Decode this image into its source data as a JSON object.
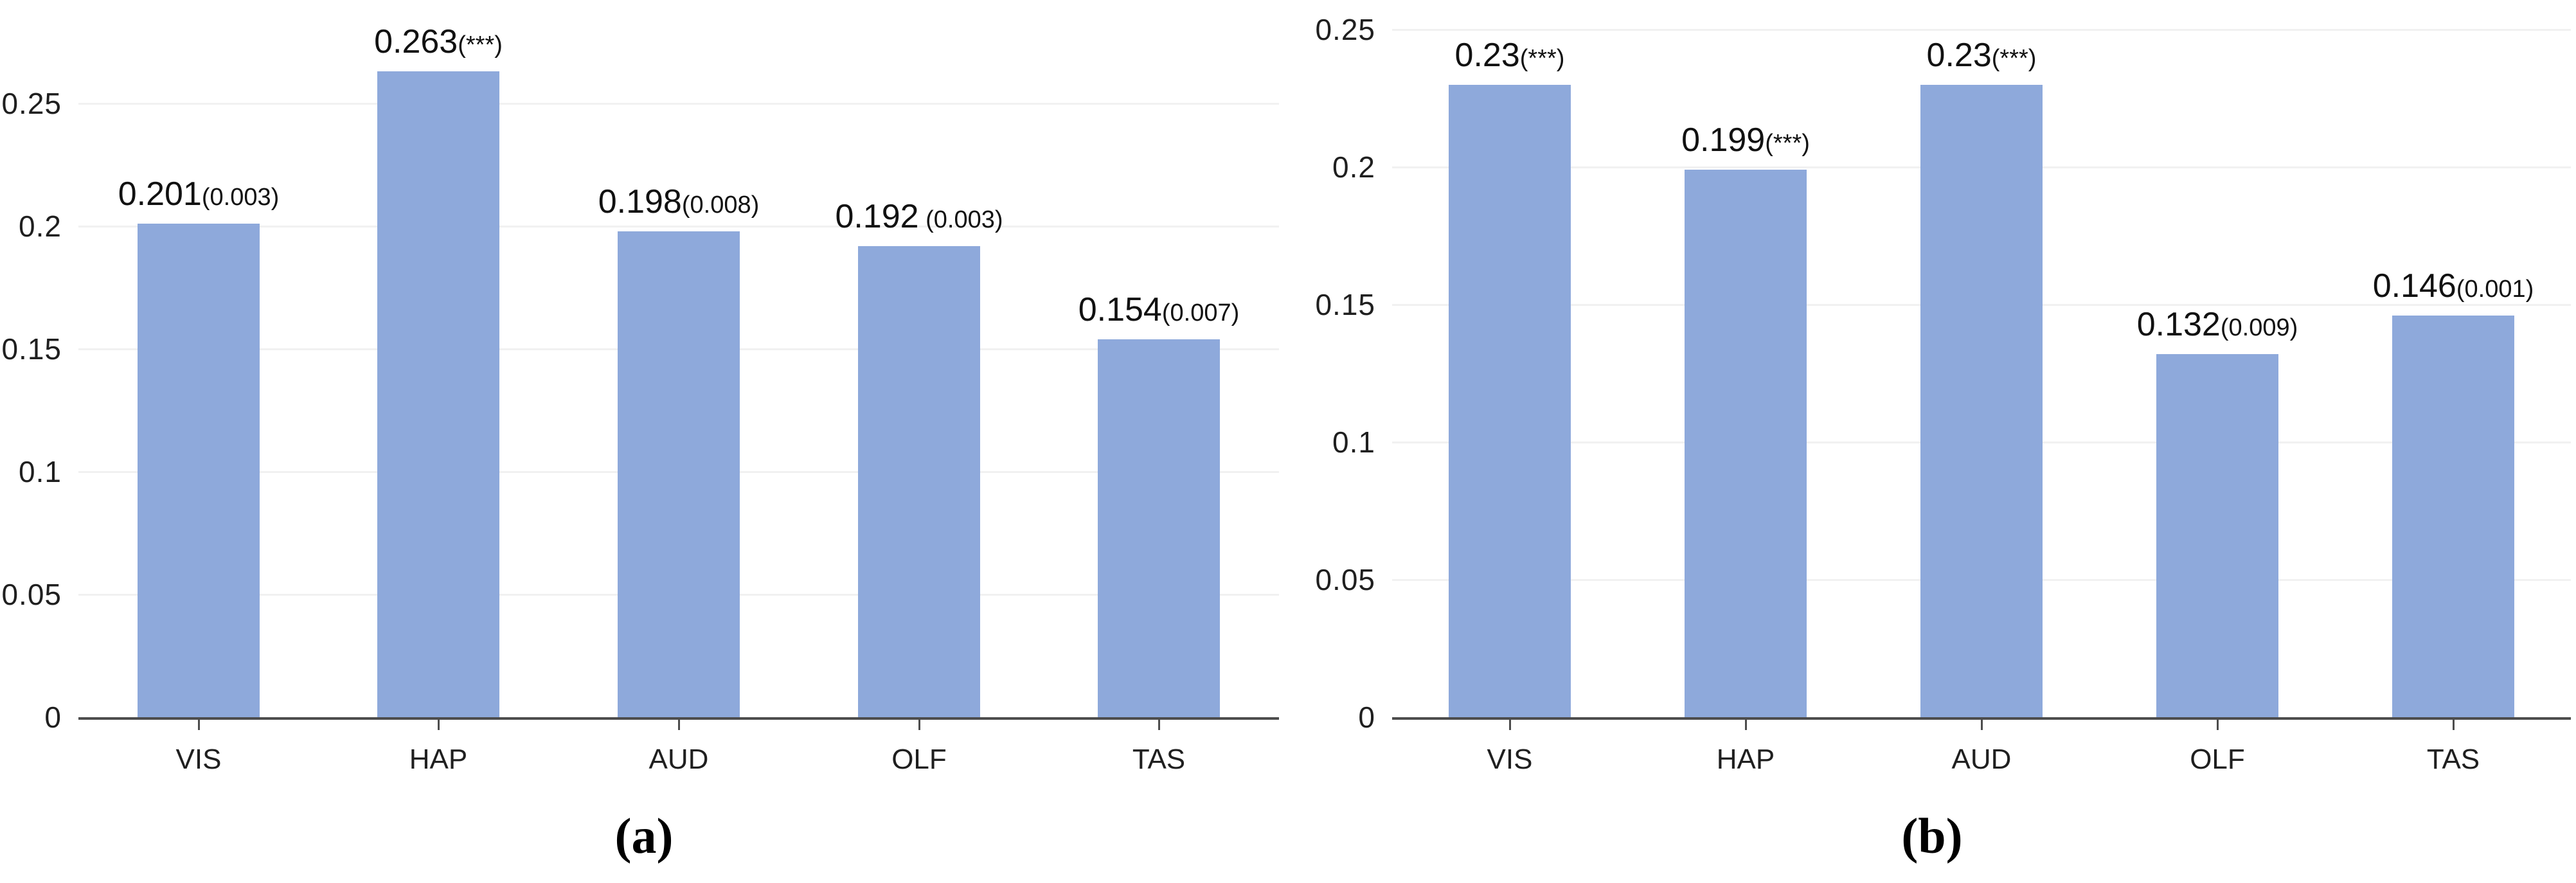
{
  "figure": {
    "background": "#ffffff",
    "caption_a": "(a)",
    "caption_b": "(b)"
  },
  "chart_data": [
    {
      "panel": "a",
      "type": "bar",
      "caption": "(a)",
      "categories": [
        "VIS",
        "HAP",
        "AUD",
        "OLF",
        "TAS"
      ],
      "values": [
        0.201,
        0.263,
        0.198,
        0.192,
        0.154
      ],
      "bar_labels": [
        {
          "value": "0.201",
          "stat": "(0.003)"
        },
        {
          "value": "0.263",
          "stat": "(***)"
        },
        {
          "value": "0.198",
          "stat": "(0.008)"
        },
        {
          "value": "0.192",
          "stat": " (0.003)"
        },
        {
          "value": "0.154",
          "stat": "(0.007)"
        }
      ],
      "ylabel": "",
      "xlabel": "",
      "title": "",
      "ylim": [
        0,
        0.27
      ],
      "yticks": [
        0,
        0.05,
        0.1,
        0.15,
        0.2,
        0.25
      ],
      "ytick_labels": [
        "0",
        "0.05",
        "0.1",
        "0.15",
        "0.2",
        "0.25"
      ],
      "grid": "faint-horizontal",
      "legend": null,
      "bar_color": "#8EA9DB",
      "axis_color": "#4D4D4D",
      "gridline_color": "#F1F1F1",
      "text_color": "#1F1F1F"
    },
    {
      "panel": "b",
      "type": "bar",
      "caption": "(b)",
      "categories": [
        "VIS",
        "HAP",
        "AUD",
        "OLF",
        "TAS"
      ],
      "values": [
        0.23,
        0.199,
        0.23,
        0.132,
        0.146
      ],
      "bar_labels": [
        {
          "value": "0.23",
          "stat": "(***)"
        },
        {
          "value": "0.199",
          "stat": "(***)"
        },
        {
          "value": "0.23",
          "stat": "(***)"
        },
        {
          "value": "0.132",
          "stat": "(0.009)"
        },
        {
          "value": "0.146",
          "stat": "(0.001)"
        }
      ],
      "ylabel": "",
      "xlabel": "",
      "title": "",
      "ylim": [
        0,
        0.25
      ],
      "yticks": [
        0,
        0.05,
        0.1,
        0.15,
        0.2,
        0.25
      ],
      "ytick_labels": [
        "0",
        "0.05",
        "0.1",
        "0.15",
        "0.2",
        "0.25"
      ],
      "grid": "faint-horizontal",
      "legend": null,
      "bar_color": "#8EA9DB",
      "axis_color": "#4D4D4D",
      "gridline_color": "#F1F1F1",
      "text_color": "#1F1F1F"
    }
  ]
}
